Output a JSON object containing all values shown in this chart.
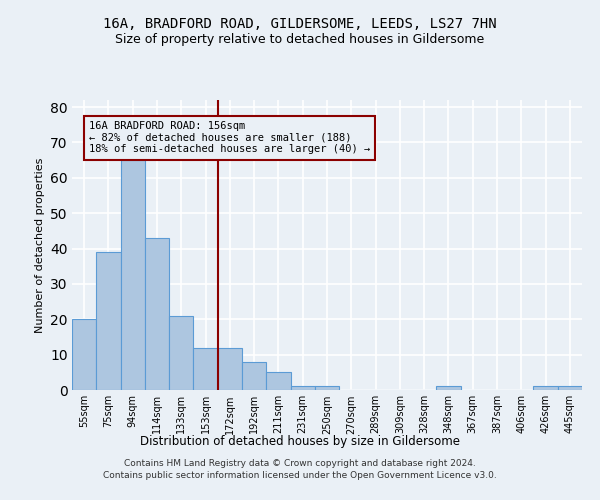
{
  "title1": "16A, BRADFORD ROAD, GILDERSOME, LEEDS, LS27 7HN",
  "title2": "Size of property relative to detached houses in Gildersome",
  "xlabel": "Distribution of detached houses by size in Gildersome",
  "ylabel": "Number of detached properties",
  "categories": [
    "55sqm",
    "75sqm",
    "94sqm",
    "114sqm",
    "133sqm",
    "153sqm",
    "172sqm",
    "192sqm",
    "211sqm",
    "231sqm",
    "250sqm",
    "270sqm",
    "289sqm",
    "309sqm",
    "328sqm",
    "348sqm",
    "367sqm",
    "387sqm",
    "406sqm",
    "426sqm",
    "445sqm"
  ],
  "values": [
    20,
    39,
    65,
    43,
    21,
    12,
    12,
    8,
    5,
    1,
    1,
    0,
    0,
    0,
    0,
    1,
    0,
    0,
    0,
    1,
    1
  ],
  "bar_color": "#adc6e0",
  "bar_edge_color": "#5b9bd5",
  "property_label": "16A BRADFORD ROAD: 156sqm",
  "annotation_line1": "← 82% of detached houses are smaller (188)",
  "annotation_line2": "18% of semi-detached houses are larger (40) →",
  "vline_color": "#8b0000",
  "vline_x_index": 5.5,
  "ylim": [
    0,
    82
  ],
  "yticks": [
    0,
    10,
    20,
    30,
    40,
    50,
    60,
    70,
    80
  ],
  "footer1": "Contains HM Land Registry data © Crown copyright and database right 2024.",
  "footer2": "Contains public sector information licensed under the Open Government Licence v3.0.",
  "background_color": "#eaf0f6",
  "grid_color": "#d8e4ef",
  "title_fontsize": 10,
  "subtitle_fontsize": 9
}
